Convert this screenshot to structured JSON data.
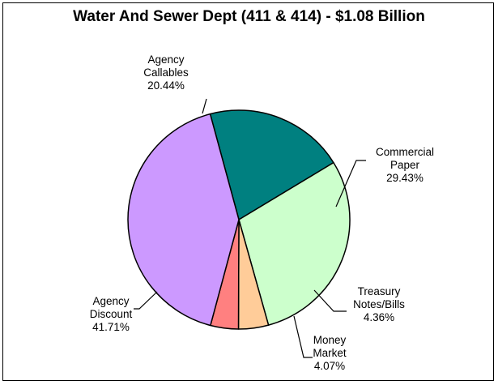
{
  "chart_data": {
    "type": "pie",
    "title": "Water And Sewer Dept (411 & 414) - $1.08 Billion",
    "slices": [
      {
        "label_lines": [
          "Agency",
          "Callables"
        ],
        "pct_text": "20.44%",
        "value": 20.44,
        "color": "#008080"
      },
      {
        "label_lines": [
          "Commercial",
          "Paper"
        ],
        "pct_text": "29.43%",
        "value": 29.43,
        "color": "#ccffcc"
      },
      {
        "label_lines": [
          "Treasury",
          "Notes/Bills"
        ],
        "pct_text": "4.36%",
        "value": 4.36,
        "color": "#ffcc99"
      },
      {
        "label_lines": [
          "Money",
          "Market"
        ],
        "pct_text": "4.07%",
        "value": 4.07,
        "color": "#ff8080"
      },
      {
        "label_lines": [
          "Agency",
          "Discount"
        ],
        "pct_text": "41.71%",
        "value": 41.71,
        "color": "#cc99ff"
      }
    ]
  }
}
